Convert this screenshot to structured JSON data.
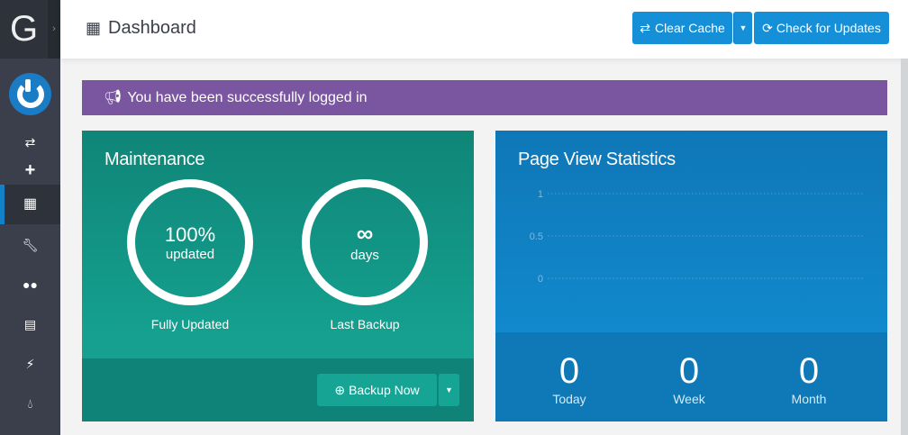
{
  "header": {
    "title": "Dashboard",
    "clear_cache": "Clear Cache",
    "check_updates": "Check for Updates"
  },
  "sidebar": {
    "logo": "G",
    "items": [
      "retweet-icon",
      "plus-icon",
      "th-icon",
      "wrench-icon",
      "users-icon",
      "file-icon",
      "plug-icon",
      "tint-icon"
    ],
    "active": "th-icon"
  },
  "alert": {
    "text": "You have been successfully logged in",
    "color": "#7a55a0"
  },
  "maintenance": {
    "title": "Maintenance",
    "update_value": "100%",
    "update_unit": "updated",
    "update_label": "Fully Updated",
    "backup_value": "∞",
    "backup_unit": "days",
    "backup_label": "Last Backup",
    "backup_button": "Backup Now"
  },
  "stats": {
    "title": "Page View Statistics",
    "today": "0",
    "today_label": "Today",
    "week": "0",
    "week_label": "Week",
    "month": "0",
    "month_label": "Month"
  },
  "chart_data": {
    "type": "line",
    "title": "Page View Statistics",
    "yticks": [
      "1",
      "0.5",
      "0"
    ],
    "ylim": [
      0,
      1
    ],
    "grid": true,
    "series": []
  }
}
